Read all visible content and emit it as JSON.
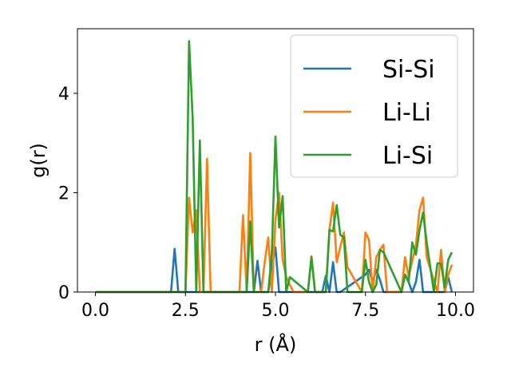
{
  "chart_data": {
    "type": "line",
    "xlabel": "r (Å)",
    "ylabel": "g(r)",
    "xlim": [
      -0.5,
      10.5
    ],
    "ylim": [
      0,
      5.3
    ],
    "xticks": [
      "0.0",
      "2.5",
      "5.0",
      "7.5",
      "10.0"
    ],
    "yticks": [
      "0",
      "2",
      "4"
    ],
    "grid": false,
    "legend_position": "top-right",
    "series": [
      {
        "name": "Si-Si",
        "color": "#1f77b4",
        "x": [
          0.0,
          2.1,
          2.2,
          2.3,
          4.4,
          4.5,
          4.6,
          4.8,
          4.9,
          5.0,
          5.1,
          6.3,
          6.4,
          6.5,
          6.6,
          6.7,
          6.8,
          7.5,
          7.6,
          7.7,
          7.8,
          7.9,
          8.0,
          8.5,
          8.6,
          8.7,
          8.8,
          8.9,
          9.0,
          9.1,
          9.7,
          9.8,
          9.9
        ],
        "y": [
          0,
          0,
          0.87,
          0,
          0,
          0.63,
          0,
          0,
          0.5,
          0.9,
          0,
          0,
          0.33,
          0,
          0.6,
          0,
          0,
          0.35,
          0.45,
          0.2,
          0.45,
          0.25,
          0,
          0,
          0.35,
          0.2,
          0,
          0.2,
          0.65,
          0,
          0,
          0.3,
          0
        ]
      },
      {
        "name": "Li-Li",
        "color": "#ff7f0e",
        "x": [
          0.0,
          2.5,
          2.6,
          2.7,
          2.8,
          2.9,
          3.0,
          3.1,
          3.2,
          4.0,
          4.1,
          4.2,
          4.3,
          4.4,
          4.6,
          4.7,
          4.8,
          4.9,
          5.0,
          5.1,
          5.2,
          5.3,
          5.5,
          5.9,
          6.0,
          6.1,
          6.4,
          6.5,
          6.6,
          6.7,
          6.9,
          7.0,
          7.4,
          7.5,
          7.6,
          7.7,
          7.8,
          7.9,
          8.0,
          8.1,
          8.5,
          8.6,
          8.7,
          8.9,
          9.0,
          9.1,
          9.2,
          9.5,
          9.6,
          9.7,
          9.8,
          9.9
        ],
        "y": [
          0,
          0,
          1.9,
          1.2,
          1.65,
          0,
          0,
          2.68,
          0,
          0,
          1.55,
          0,
          2.8,
          0,
          0,
          0.6,
          1.1,
          0,
          1.45,
          2.0,
          0.65,
          0.3,
          0,
          0,
          0.72,
          0,
          0,
          1.25,
          1.8,
          0.6,
          1.2,
          0.5,
          0,
          1.2,
          1.05,
          0,
          0.7,
          0.85,
          0.95,
          0,
          0,
          0.7,
          0.3,
          0.95,
          1.65,
          1.9,
          0.7,
          0,
          0.85,
          0,
          0.35,
          0.55
        ]
      },
      {
        "name": "Li-Si",
        "color": "#2ca02c",
        "x": [
          0.0,
          2.5,
          2.6,
          2.7,
          2.8,
          2.9,
          3.0,
          4.2,
          4.3,
          4.4,
          4.8,
          4.9,
          5.0,
          5.1,
          5.2,
          5.3,
          5.4,
          5.9,
          6.0,
          6.1,
          6.4,
          6.5,
          6.6,
          6.7,
          6.8,
          6.9,
          7.0,
          7.4,
          7.5,
          7.6,
          7.7,
          7.8,
          7.9,
          8.0,
          8.5,
          8.6,
          8.7,
          8.8,
          8.9,
          9.0,
          9.1,
          9.2,
          9.4,
          9.5,
          9.6,
          9.7,
          9.8,
          9.9
        ],
        "y": [
          0,
          0,
          5.05,
          3.5,
          0,
          3.05,
          0,
          0,
          1.42,
          0,
          0,
          0.8,
          3.13,
          1.3,
          1.93,
          0,
          0.3,
          0,
          0.7,
          0,
          0,
          1.25,
          1.22,
          1.75,
          1.15,
          1.1,
          0,
          0,
          0.65,
          0.2,
          0,
          0.15,
          0.85,
          0.8,
          0,
          0.35,
          0.2,
          1.0,
          0.75,
          1.25,
          1.6,
          1.0,
          0,
          0.58,
          0.57,
          0.1,
          0.65,
          0.8
        ]
      }
    ]
  }
}
